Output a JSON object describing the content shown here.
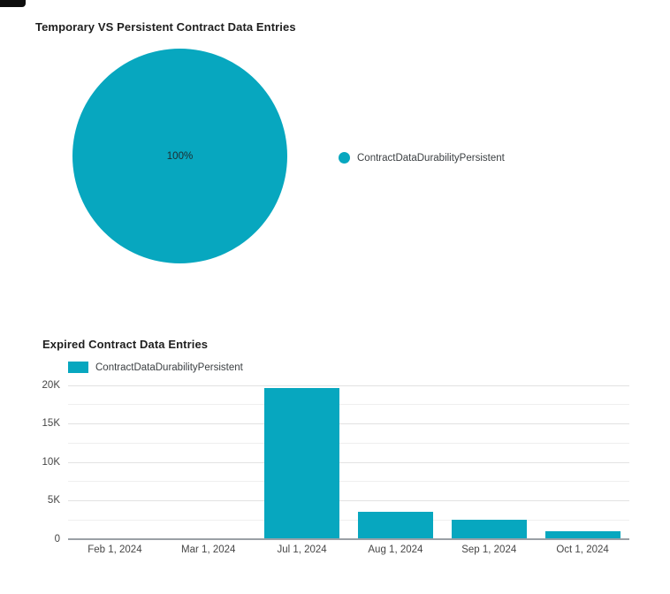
{
  "colors": {
    "series_teal": "#07a7bf",
    "title_text": "#1f1f1f",
    "legend_text": "#3c4043",
    "axis_text": "#464646",
    "grid_major": "#e2e2e2",
    "grid_minor": "#efefef",
    "axis_baseline": "#9aa0a6",
    "background": "#ffffff"
  },
  "pie_chart": {
    "title": "Temporary VS Persistent Contract Data Entries",
    "slice_label": "100%",
    "legend_label": "ContractDataDurabilityPersistent"
  },
  "bar_chart": {
    "title": "Expired Contract Data Entries",
    "legend_label": "ContractDataDurabilityPersistent"
  },
  "chart_data": [
    {
      "type": "pie",
      "title": "Temporary VS Persistent Contract Data Entries",
      "labels": [
        "ContractDataDurabilityPersistent"
      ],
      "values": [
        100
      ],
      "value_unit": "percent_of_total",
      "slice_labels": [
        "100%"
      ],
      "colors": [
        "#07a7bf"
      ],
      "legend_position": "right"
    },
    {
      "type": "bar",
      "title": "Expired Contract Data Entries",
      "categories": [
        "Feb 1, 2024",
        "Mar 1, 2024",
        "Jul 1, 2024",
        "Aug 1, 2024",
        "Sep 1, 2024",
        "Oct 1, 2024"
      ],
      "series": [
        {
          "name": "ContractDataDurabilityPersistent",
          "color": "#07a7bf",
          "values": [
            50,
            50,
            19600,
            3600,
            2500,
            1000
          ]
        }
      ],
      "ylim": [
        0,
        20000
      ],
      "yticks": [
        0,
        5000,
        10000,
        15000,
        20000
      ],
      "ytick_labels": [
        "0",
        "5K",
        "10K",
        "15K",
        "20K"
      ],
      "yticks_minor": [
        2500,
        7500,
        12500,
        17500
      ],
      "grid": true,
      "legend_position": "top-left",
      "xlabel": "",
      "ylabel": ""
    }
  ]
}
